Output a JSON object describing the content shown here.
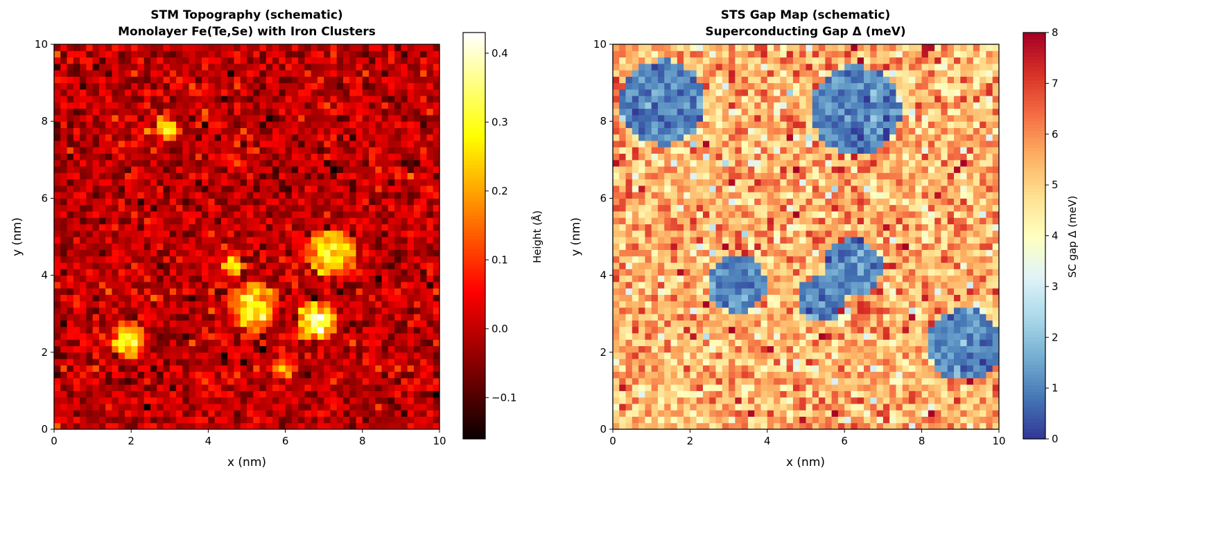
{
  "chart_data": [
    {
      "type": "heatmap",
      "title": "STM Topography (schematic)",
      "subtitle": "Monolayer Fe(Te,Se) with Iron Clusters",
      "xlabel": "x (nm)",
      "ylabel": "y (nm)",
      "xlim": [
        0,
        10
      ],
      "ylim": [
        0,
        10
      ],
      "xticks": [
        "0",
        "2",
        "4",
        "6",
        "8",
        "10"
      ],
      "yticks": [
        "0",
        "2",
        "4",
        "6",
        "8",
        "10"
      ],
      "grid_size": [
        60,
        60
      ],
      "colormap": "hot",
      "colorbar": {
        "label": "Height (Å)",
        "range": [
          -0.16,
          0.43
        ],
        "ticks": [
          "−0.1",
          "0.0",
          "0.1",
          "0.2",
          "0.3",
          "0.4"
        ],
        "tick_values": [
          -0.1,
          0.0,
          0.1,
          0.2,
          0.3,
          0.4
        ]
      },
      "background_mean": 0.0,
      "clusters": [
        {
          "x": 2.9,
          "y": 7.8,
          "r": 0.3,
          "peak": 0.3
        },
        {
          "x": 7.2,
          "y": 4.6,
          "r": 0.6,
          "peak": 0.33
        },
        {
          "x": 4.6,
          "y": 4.3,
          "r": 0.3,
          "peak": 0.27
        },
        {
          "x": 5.2,
          "y": 3.2,
          "r": 0.6,
          "peak": 0.33
        },
        {
          "x": 6.8,
          "y": 2.8,
          "r": 0.5,
          "peak": 0.38
        },
        {
          "x": 1.9,
          "y": 2.3,
          "r": 0.45,
          "peak": 0.3
        },
        {
          "x": 5.9,
          "y": 1.6,
          "r": 0.3,
          "peak": 0.2
        }
      ]
    },
    {
      "type": "heatmap",
      "title": "STS Gap Map (schematic)",
      "subtitle": "Superconducting Gap Δ (meV)",
      "xlabel": "x (nm)",
      "ylabel": "y (nm)",
      "xlim": [
        0,
        10
      ],
      "ylim": [
        0,
        10
      ],
      "xticks": [
        "0",
        "2",
        "4",
        "6",
        "8",
        "10"
      ],
      "yticks": [
        "0",
        "2",
        "4",
        "6",
        "8",
        "10"
      ],
      "grid_size": [
        60,
        60
      ],
      "colormap": "RdYlBu_r",
      "colorbar": {
        "label": "SC gap Δ (meV)",
        "range": [
          0,
          8
        ],
        "ticks": [
          "0",
          "1",
          "2",
          "3",
          "4",
          "5",
          "6",
          "7",
          "8"
        ],
        "tick_values": [
          0,
          1,
          2,
          3,
          4,
          5,
          6,
          7,
          8
        ]
      },
      "background_mean": 5.5,
      "suppressed_regions": [
        {
          "x": 1.3,
          "y": 8.5,
          "r": 1.1,
          "gap": 1.0
        },
        {
          "x": 6.3,
          "y": 8.3,
          "r": 1.15,
          "gap": 1.0
        },
        {
          "x": 3.2,
          "y": 3.8,
          "r": 0.75,
          "gap": 1.0
        },
        {
          "x": 6.2,
          "y": 4.2,
          "r": 0.75,
          "gap": 1.0
        },
        {
          "x": 5.4,
          "y": 3.4,
          "r": 0.6,
          "gap": 1.0
        },
        {
          "x": 9.1,
          "y": 2.2,
          "r": 0.95,
          "gap": 1.0
        }
      ]
    }
  ]
}
